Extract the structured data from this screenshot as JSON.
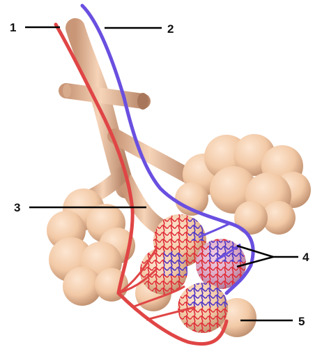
{
  "labels": {
    "l1": "1",
    "l2": "2",
    "l3": "3",
    "l4": "4",
    "l5": "5"
  },
  "colors": {
    "tissue": "#f2c9a6",
    "tissue_shadow": "#c99a7a",
    "artery": "#e04545",
    "vein": "#6a4fe0",
    "capillary_red": "#e8333c",
    "capillary_blue": "#5a44d8"
  }
}
